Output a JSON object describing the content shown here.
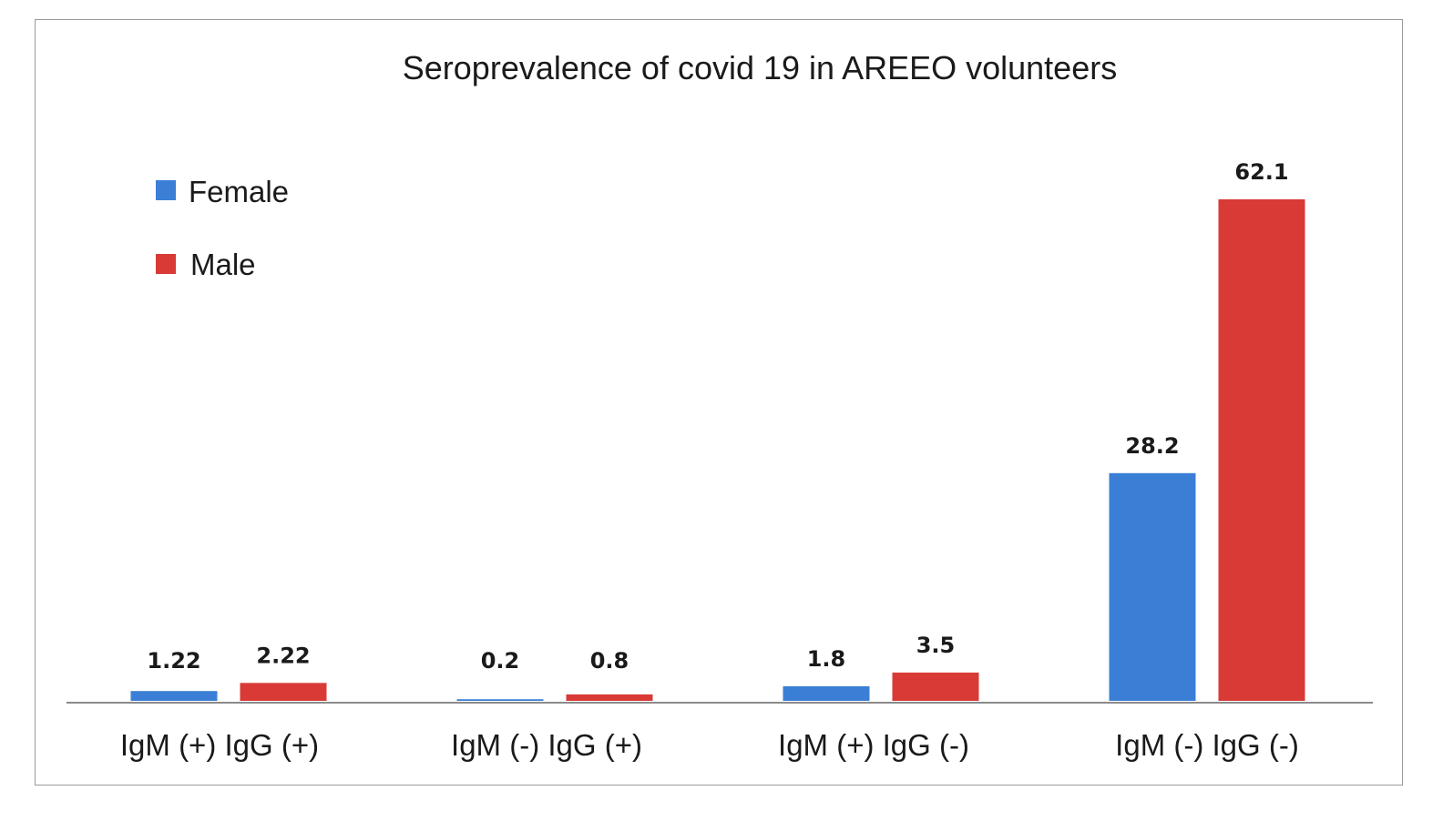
{
  "chart_data": {
    "type": "bar",
    "title": "Seroprevalence of covid 19 in AREEO volunteers",
    "xlabel": "",
    "ylabel": "",
    "categories": [
      "IgM (+) IgG (+)",
      "IgM (-) IgG (+)",
      "IgM (+) IgG (-)",
      "IgM (-) IgG (-)"
    ],
    "series": [
      {
        "name": "Female",
        "color": "#3a7fd5",
        "values": [
          1.22,
          0.2,
          1.8,
          28.2
        ],
        "labels": [
          "1.22",
          "0.2",
          "1.8",
          "28.2"
        ]
      },
      {
        "name": "Male",
        "color": "#d93a36",
        "values": [
          2.22,
          0.8,
          3.5,
          62.1
        ],
        "labels": [
          "2.22",
          "0.8",
          "3.5",
          "62.1"
        ]
      }
    ],
    "ylim": [
      0,
      62.1
    ],
    "grid": false,
    "legend": "top-left",
    "data_labels": true
  }
}
